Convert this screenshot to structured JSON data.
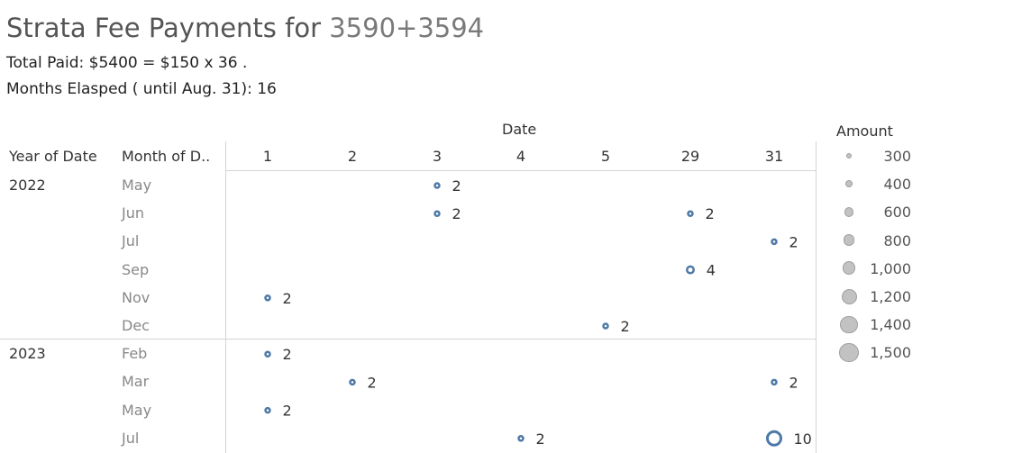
{
  "title": {
    "prefix": "Strata Fee Payments for",
    "units": "3590+3594"
  },
  "subtitle_1": "Total Paid:  $5400  =  $150 x 36 .",
  "subtitle_2": "Months Elasped ( until Aug. 31): 16",
  "headers": {
    "date": "Date",
    "year": "Year of Date",
    "month": "Month of D.."
  },
  "legend": {
    "title": "Amount",
    "items": [
      "300",
      "400",
      "600",
      "800",
      "1,000",
      "1,200",
      "1,400",
      "1,500"
    ]
  },
  "chart_data": {
    "type": "scatter",
    "xlabel": "Date",
    "x": [
      "1",
      "2",
      "3",
      "4",
      "5",
      "29",
      "31"
    ],
    "rows": [
      {
        "year": "2022",
        "month": "May"
      },
      {
        "year": "",
        "month": "Jun"
      },
      {
        "year": "",
        "month": "Jul"
      },
      {
        "year": "",
        "month": "Sep"
      },
      {
        "year": "",
        "month": "Nov"
      },
      {
        "year": "",
        "month": "Dec"
      },
      {
        "year": "2023",
        "month": "Feb"
      },
      {
        "year": "",
        "month": "Mar"
      },
      {
        "year": "",
        "month": "May"
      },
      {
        "year": "",
        "month": "Jul"
      }
    ],
    "points": [
      {
        "year": "2022",
        "month": "May",
        "date": "3",
        "label": "2",
        "amount": 300
      },
      {
        "year": "2022",
        "month": "Jun",
        "date": "3",
        "label": "2",
        "amount": 300
      },
      {
        "year": "2022",
        "month": "Jun",
        "date": "29",
        "label": "2",
        "amount": 300
      },
      {
        "year": "2022",
        "month": "Jul",
        "date": "31",
        "label": "2",
        "amount": 300
      },
      {
        "year": "2022",
        "month": "Sep",
        "date": "29",
        "label": "4",
        "amount": 600
      },
      {
        "year": "2022",
        "month": "Nov",
        "date": "1",
        "label": "2",
        "amount": 300
      },
      {
        "year": "2022",
        "month": "Dec",
        "date": "5",
        "label": "2",
        "amount": 300
      },
      {
        "year": "2023",
        "month": "Feb",
        "date": "1",
        "label": "2",
        "amount": 300
      },
      {
        "year": "2023",
        "month": "Mar",
        "date": "2",
        "label": "2",
        "amount": 300
      },
      {
        "year": "2023",
        "month": "Mar",
        "date": "31",
        "label": "2",
        "amount": 300
      },
      {
        "year": "2023",
        "month": "May",
        "date": "1",
        "label": "2",
        "amount": 300
      },
      {
        "year": "2023",
        "month": "Jul",
        "date": "4",
        "label": "2",
        "amount": 300
      },
      {
        "year": "2023",
        "month": "Jul",
        "date": "31",
        "label": "10",
        "amount": 1500
      }
    ],
    "colors": {
      "mark": "#4e79a7",
      "legend_fill": "#c2c2c2",
      "legend_stroke": "#9f9f9f"
    }
  }
}
